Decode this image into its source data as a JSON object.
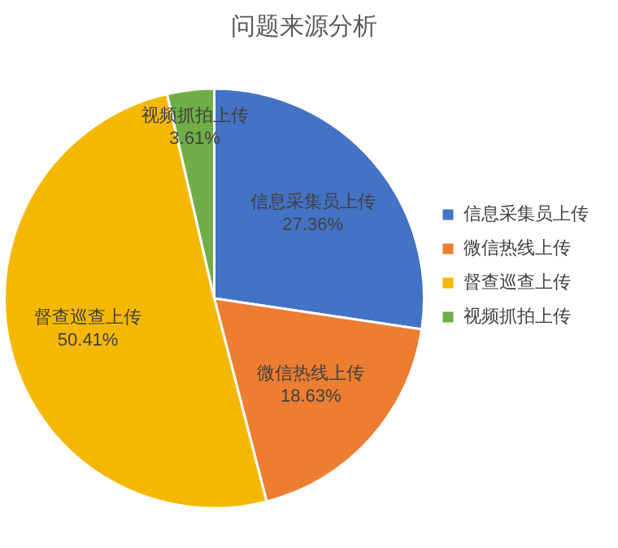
{
  "chart_data": {
    "type": "pie",
    "title": "问题来源分析",
    "categories": [
      "信息采集员上传",
      "微信热线上传",
      "督查巡查上传",
      "视频抓拍上传"
    ],
    "values": [
      27.36,
      18.63,
      50.41,
      3.61
    ],
    "value_labels": [
      "27.36%",
      "18.63%",
      "50.41%",
      "3.61%"
    ],
    "colors": [
      "#4472c4",
      "#ed7d31",
      "#f5b800",
      "#70ad47"
    ],
    "legend": "right"
  }
}
